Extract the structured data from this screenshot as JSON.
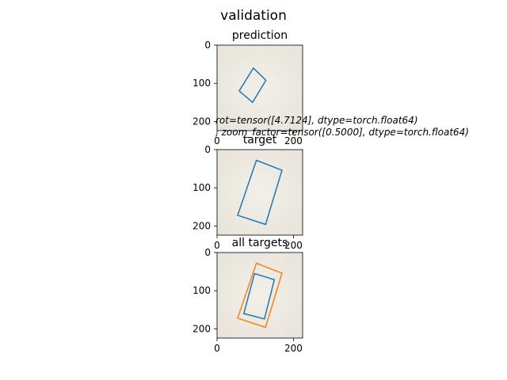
{
  "figure": {
    "suptitle": "validation",
    "annotation_line1": "rot=tensor([4.7124], dtype=torch.float64)",
    "annotation_line2": ", zoom_factor=tensor([0.5000], dtype=torch.float64)"
  },
  "chart_data": [
    {
      "type": "image",
      "title": "prediction",
      "xlabel": "",
      "ylabel": "",
      "xlim": [
        0,
        224
      ],
      "ylim": [
        224,
        0
      ],
      "xticks": [
        0,
        200
      ],
      "xtick_labels": [
        "0",
        "200"
      ],
      "yticks": [
        0,
        100,
        200
      ],
      "ytick_labels": [
        "0",
        "100",
        "200"
      ],
      "boxes": [
        {
          "color": "#1f77b4",
          "points": [
            [
              58,
              120
            ],
            [
              93,
              150
            ],
            [
              128,
              92
            ],
            [
              95,
              60
            ]
          ]
        }
      ]
    },
    {
      "type": "image",
      "title": "target",
      "xlabel": "",
      "ylabel": "",
      "xlim": [
        0,
        224
      ],
      "ylim": [
        224,
        0
      ],
      "xticks": [
        0,
        200
      ],
      "xtick_labels": [
        "0",
        "200"
      ],
      "yticks": [
        0,
        100,
        200
      ],
      "ytick_labels": [
        "0",
        "100",
        "200"
      ],
      "boxes": [
        {
          "color": "#1f77b4",
          "points": [
            [
              54,
              172
            ],
            [
              127,
              196
            ],
            [
              170,
              54
            ],
            [
              103,
              28
            ]
          ]
        }
      ]
    },
    {
      "type": "image",
      "title": "all targets",
      "xlabel": "",
      "ylabel": "",
      "xlim": [
        0,
        224
      ],
      "ylim": [
        224,
        0
      ],
      "xticks": [
        0,
        200
      ],
      "xtick_labels": [
        "0",
        "200"
      ],
      "yticks": [
        0,
        100,
        200
      ],
      "ytick_labels": [
        "0",
        "100",
        "200"
      ],
      "boxes": [
        {
          "color": "#1f77b4",
          "points": [
            [
              70,
              160
            ],
            [
              124,
              174
            ],
            [
              150,
              71
            ],
            [
              98,
              55
            ]
          ]
        },
        {
          "color": "#ff7f0e",
          "points": [
            [
              54,
              172
            ],
            [
              127,
              196
            ],
            [
              170,
              54
            ],
            [
              103,
              28
            ]
          ]
        }
      ]
    }
  ]
}
